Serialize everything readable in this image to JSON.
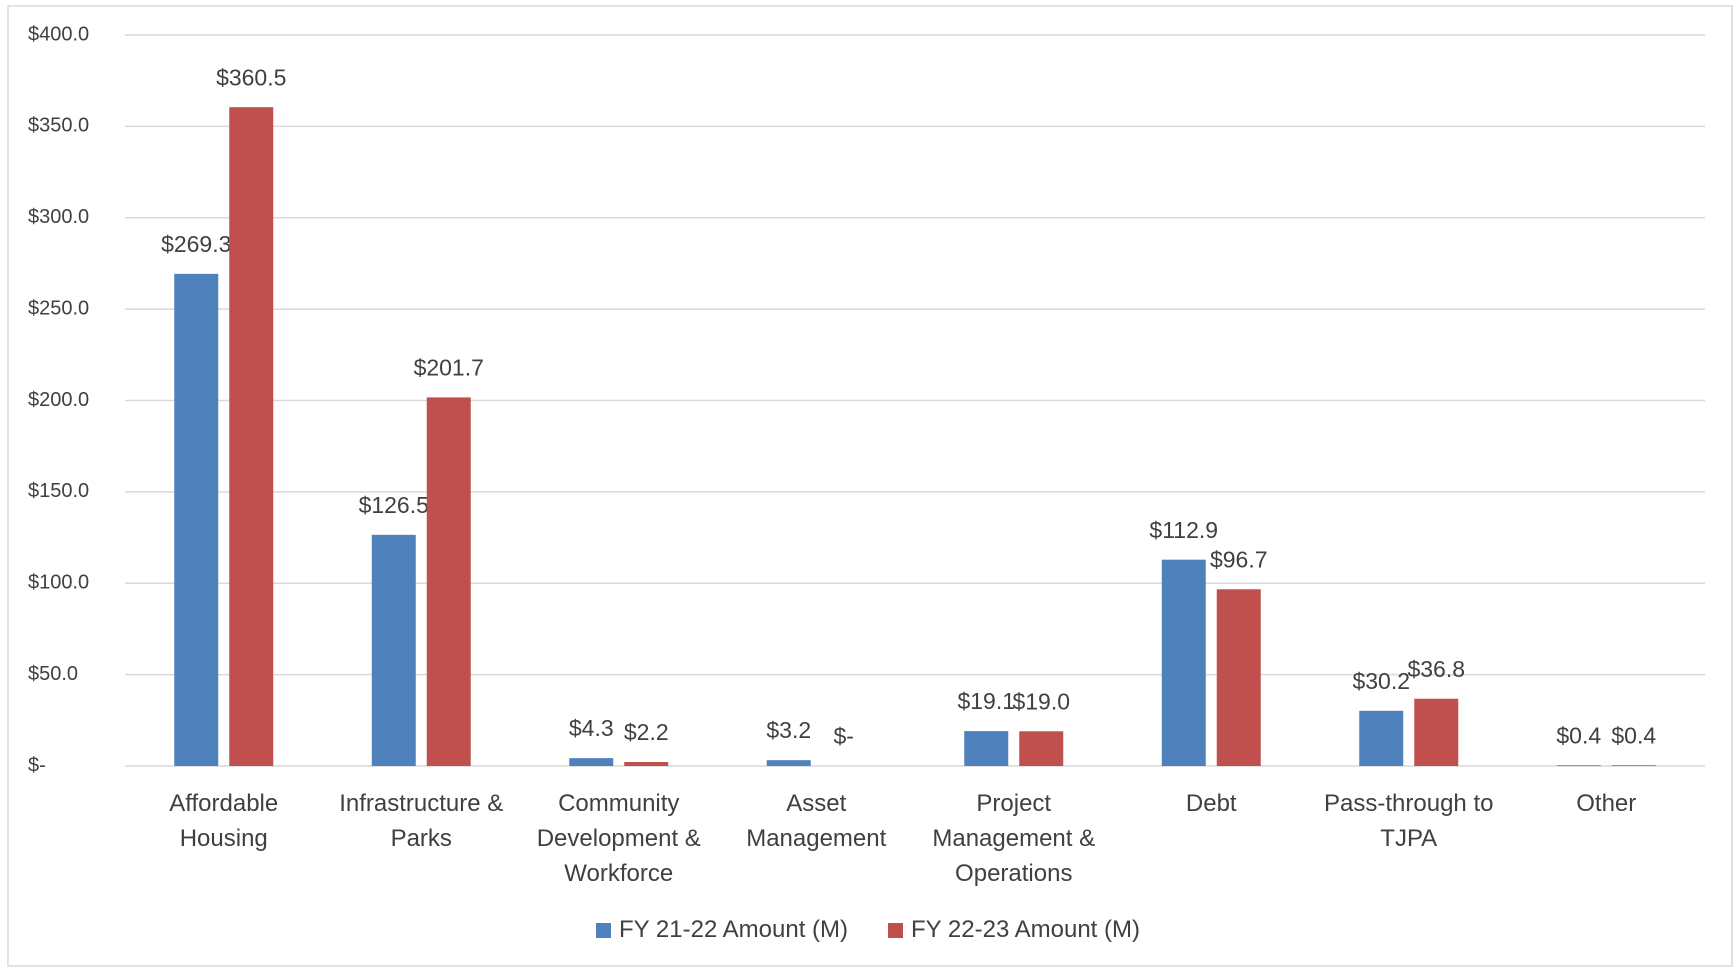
{
  "chart_data": {
    "type": "bar",
    "categories": [
      "Affordable Housing",
      "Infrastructure & Parks",
      "Community Development & Workforce",
      "Asset Management",
      "Project Management & Operations",
      "Debt",
      "Pass-through to TJPA",
      "Other"
    ],
    "series": [
      {
        "name": "FY 21-22 Amount (M)",
        "color": "#4f81bd",
        "values": [
          269.3,
          126.5,
          4.3,
          3.2,
          19.1,
          112.9,
          30.2,
          0.4
        ],
        "value_labels": [
          "$269.3",
          "$126.5",
          "$4.3",
          "$3.2",
          "$19.1",
          "$112.9",
          "$30.2",
          "$0.4"
        ]
      },
      {
        "name": "FY 22-23 Amount (M)",
        "color": "#c0504d",
        "values": [
          360.5,
          201.7,
          2.2,
          0,
          19.0,
          96.7,
          36.8,
          0.4
        ],
        "value_labels": [
          "$360.5",
          "$201.7",
          "$2.2",
          "$-",
          "$19.0",
          "$96.7",
          "$36.8",
          "$0.4"
        ]
      }
    ],
    "ylim": [
      0,
      400
    ],
    "yticks": [
      {
        "value": 0,
        "label": "$-"
      },
      {
        "value": 50,
        "label": "$50.0"
      },
      {
        "value": 100,
        "label": "$100.0"
      },
      {
        "value": 150,
        "label": "$150.0"
      },
      {
        "value": 200,
        "label": "$200.0"
      },
      {
        "value": 250,
        "label": "$250.0"
      },
      {
        "value": 300,
        "label": "$300.0"
      },
      {
        "value": 350,
        "label": "$350.0"
      },
      {
        "value": 400,
        "label": "$400.0"
      }
    ],
    "grid": true,
    "legend": "bottom"
  }
}
